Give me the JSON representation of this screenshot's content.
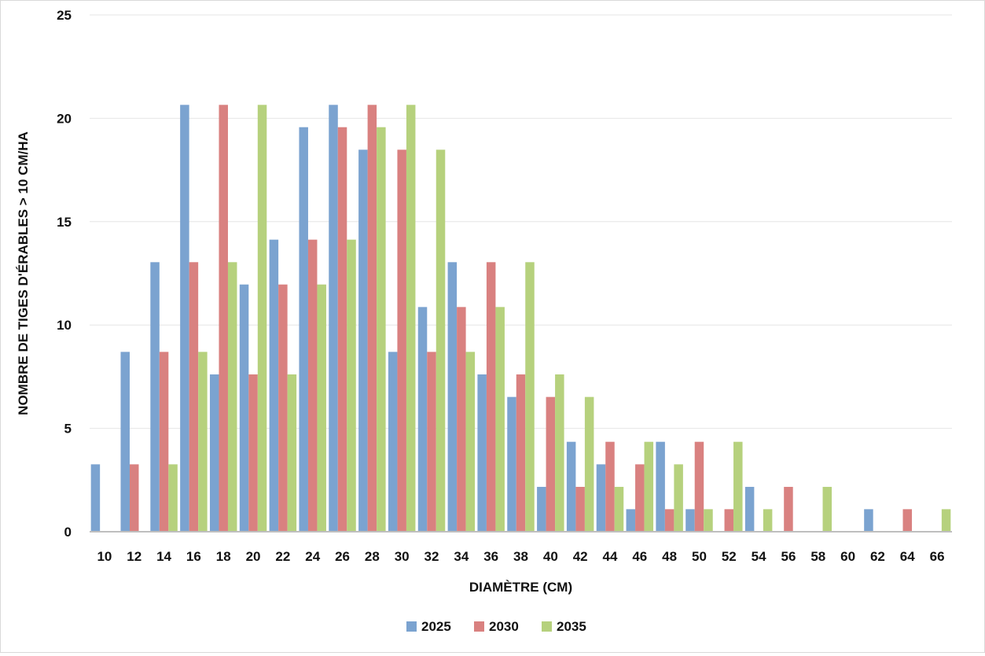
{
  "chart_data": {
    "type": "bar",
    "title": "",
    "xlabel": "DIAMÈTRE (CM)",
    "ylabel": "NOMBRE DE TIGES D'ÉRABLES > 10 CM/HA",
    "ylim": [
      0,
      25
    ],
    "y_ticks": [
      "0",
      "5",
      "10",
      "15",
      "20",
      "25"
    ],
    "y_tick_values": [
      0,
      5,
      10,
      15,
      20,
      25
    ],
    "grid": "horizontal",
    "legend_position": "bottom",
    "categories": [
      "10",
      "12",
      "14",
      "16",
      "18",
      "20",
      "22",
      "24",
      "26",
      "28",
      "30",
      "32",
      "34",
      "36",
      "38",
      "40",
      "42",
      "44",
      "46",
      "48",
      "50",
      "52",
      "54",
      "56",
      "58",
      "60",
      "62",
      "64",
      "66"
    ],
    "series": [
      {
        "name": "2025",
        "color": "#7ba3d0",
        "values": [
          3.26,
          8.7,
          13.04,
          20.65,
          7.61,
          11.96,
          14.13,
          19.57,
          20.65,
          18.48,
          8.7,
          10.87,
          13.04,
          7.61,
          6.52,
          2.17,
          4.35,
          3.26,
          1.09,
          4.35,
          1.09,
          0,
          2.17,
          0,
          0,
          0,
          1.09,
          0,
          0
        ]
      },
      {
        "name": "2030",
        "color": "#d98180",
        "values": [
          0,
          3.26,
          8.7,
          13.04,
          20.65,
          7.61,
          11.96,
          14.13,
          19.57,
          20.65,
          18.48,
          8.7,
          10.87,
          13.04,
          7.61,
          6.52,
          2.17,
          4.35,
          3.26,
          1.09,
          4.35,
          1.09,
          0,
          2.17,
          0,
          0,
          0,
          1.09,
          0
        ]
      },
      {
        "name": "2035",
        "color": "#b6d17d",
        "values": [
          0,
          0,
          3.26,
          8.7,
          13.04,
          20.65,
          7.61,
          11.96,
          14.13,
          19.57,
          20.65,
          18.48,
          8.7,
          10.87,
          13.04,
          7.61,
          6.52,
          2.17,
          4.35,
          3.26,
          1.09,
          4.35,
          1.09,
          0,
          2.17,
          0,
          0,
          0,
          1.09
        ]
      }
    ]
  }
}
